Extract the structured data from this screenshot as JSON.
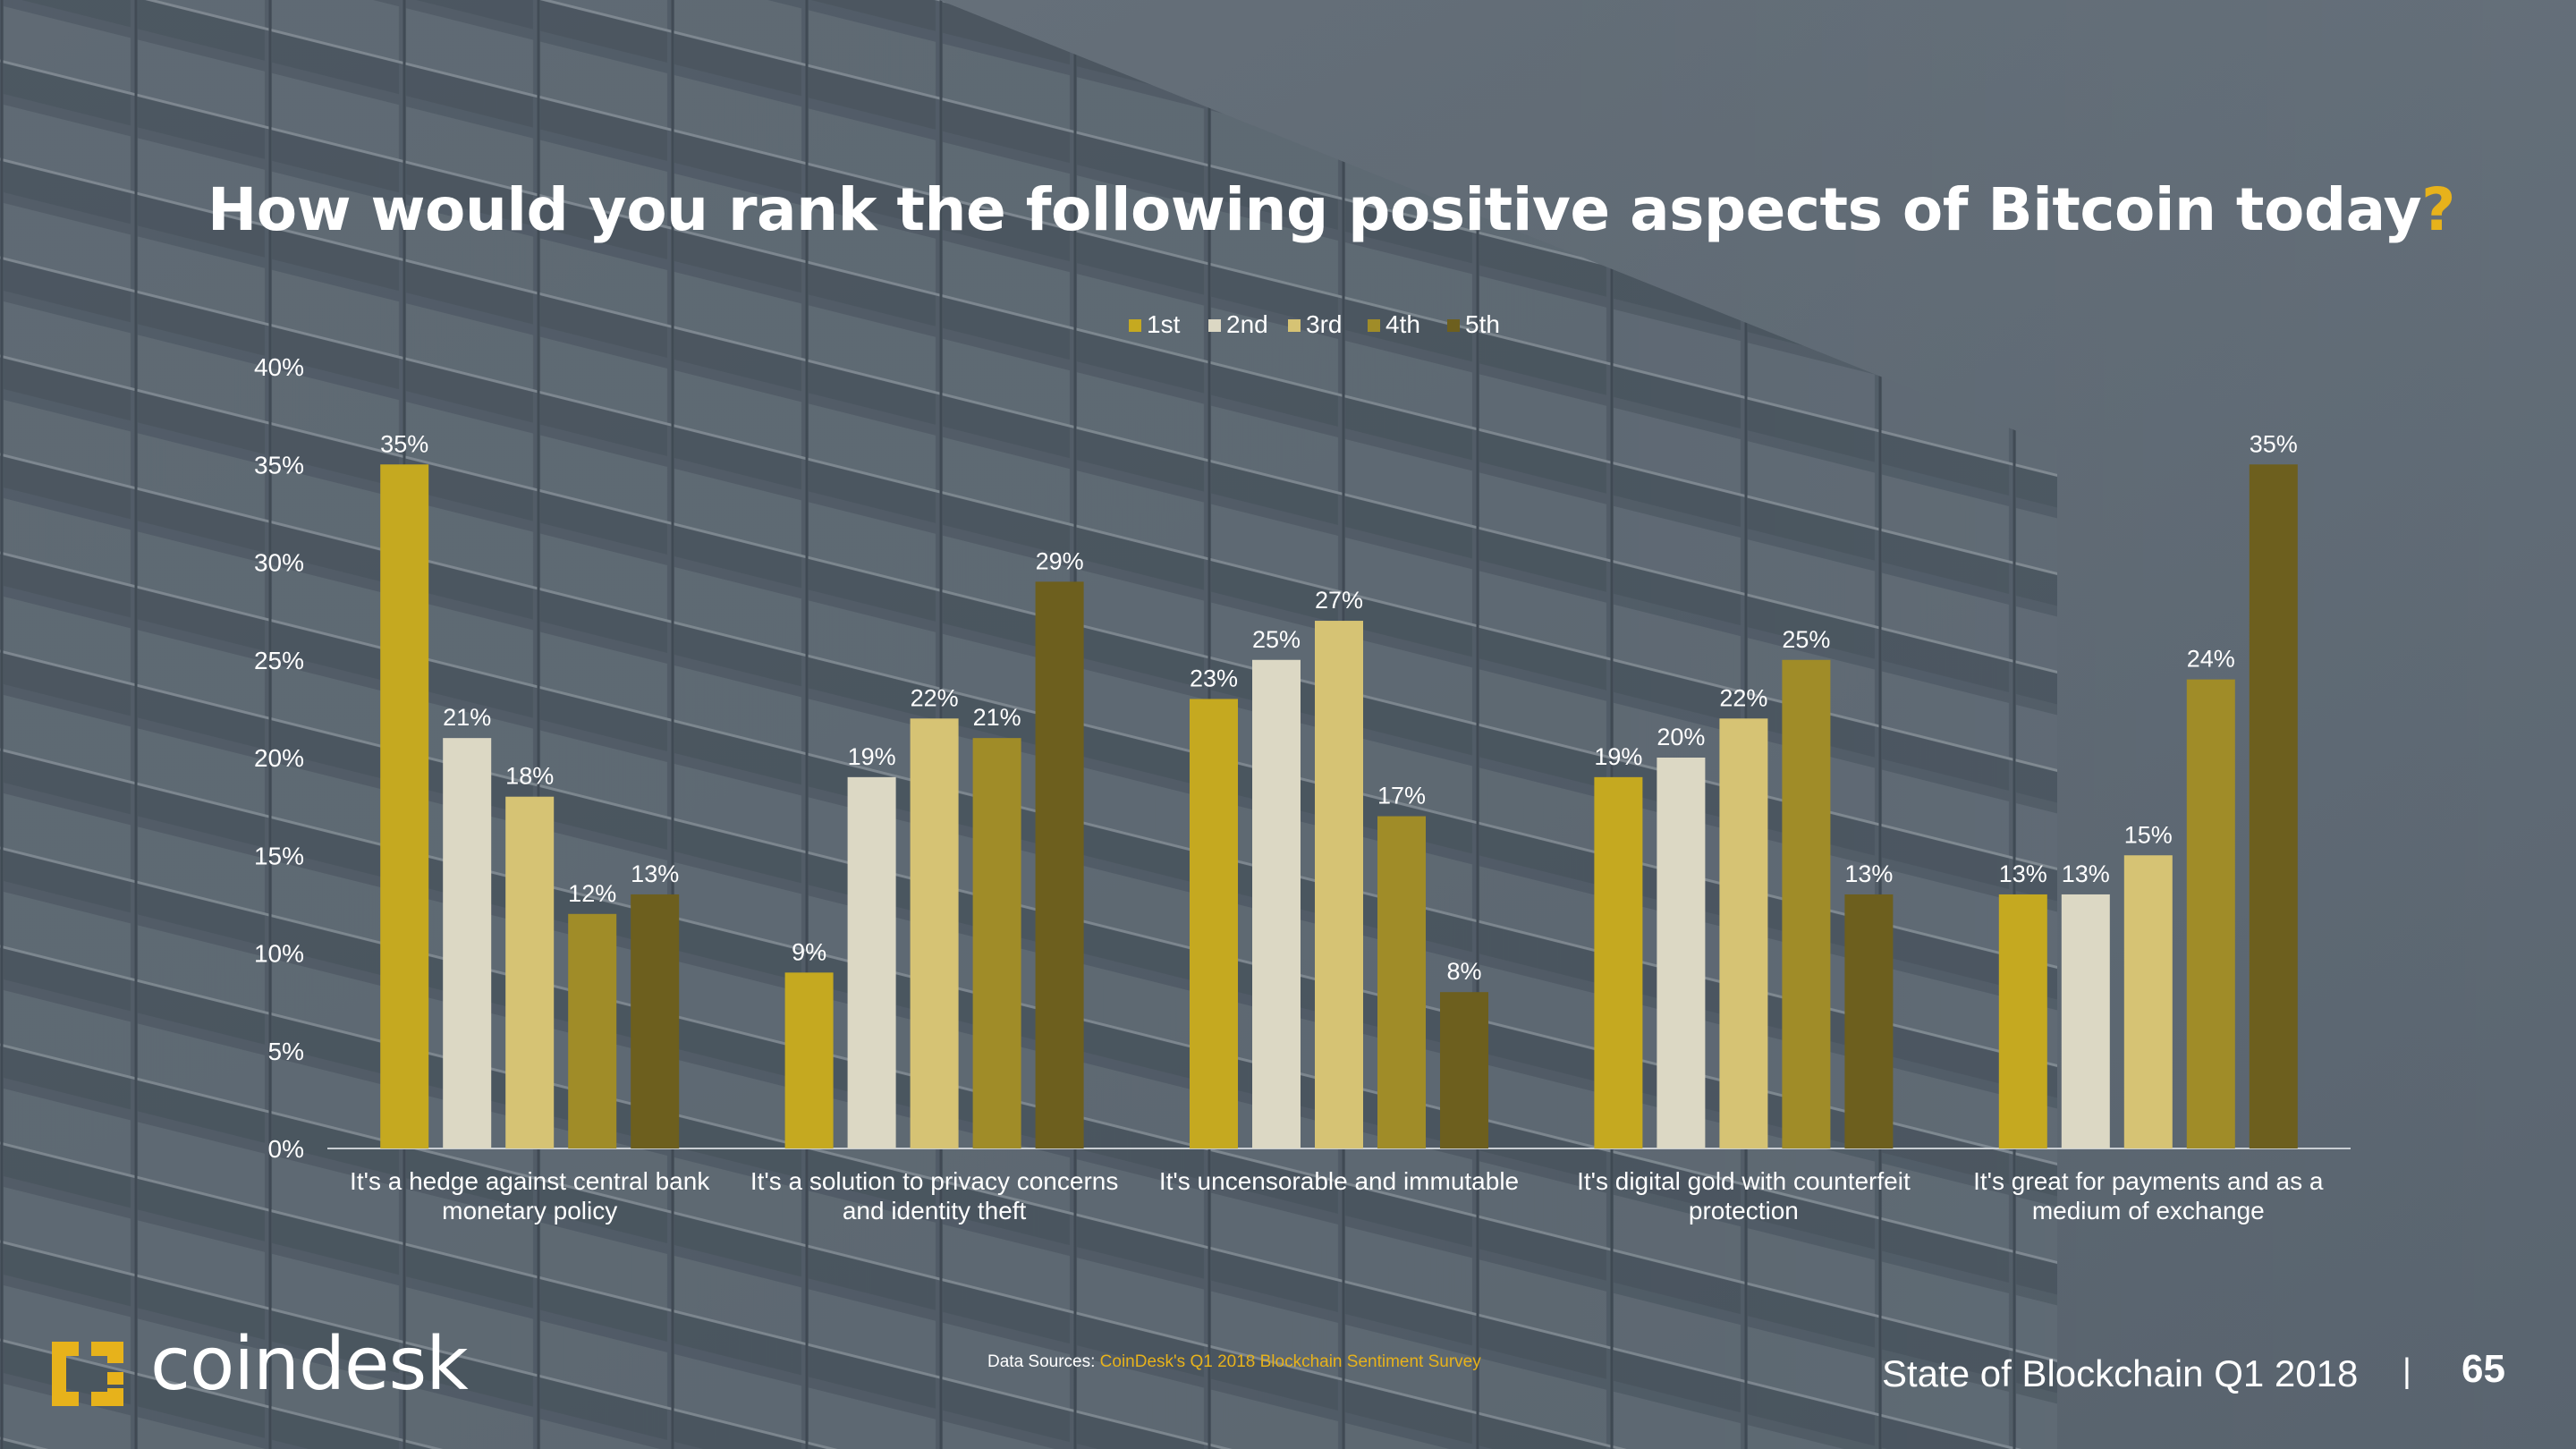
{
  "slide": {
    "title": "How would you rank the following positive aspects of Bitcoin today",
    "title_mark": "?",
    "brand": "coindesk",
    "sources_label": "Data Sources: ",
    "sources_text": "CoinDesk's Q1 2018 Blockchain Sentiment Survey",
    "report": "State of Blockchain Q1 2018",
    "separator": "|",
    "page_number": "65",
    "accent_color": "#e7b21b"
  },
  "chart_data": {
    "type": "bar",
    "title": "How would you rank the following positive aspects of Bitcoin today?",
    "categories": [
      [
        "It's a hedge against central bank",
        "monetary policy"
      ],
      [
        "It's a solution to privacy concerns",
        "and identity theft"
      ],
      [
        "It's uncensorable and immutable"
      ],
      [
        "It's digital gold with counterfeit",
        "protection"
      ],
      [
        "It's great for payments and as a",
        "medium of exchange"
      ]
    ],
    "series": [
      {
        "name": "1st",
        "color": "#c5a920",
        "values": [
          35,
          9,
          23,
          19,
          13
        ]
      },
      {
        "name": "2nd",
        "color": "#dcd8c4",
        "values": [
          21,
          19,
          25,
          20,
          13
        ]
      },
      {
        "name": "3rd",
        "color": "#d6c374",
        "values": [
          18,
          22,
          27,
          22,
          15
        ]
      },
      {
        "name": "4th",
        "color": "#a08c28",
        "values": [
          12,
          21,
          17,
          25,
          24
        ]
      },
      {
        "name": "5th",
        "color": "#6d5f1e",
        "values": [
          13,
          29,
          8,
          13,
          35
        ]
      }
    ],
    "y_ticks": [
      "0%",
      "5%",
      "10%",
      "15%",
      "20%",
      "25%",
      "30%",
      "35%",
      "40%"
    ],
    "ylim": [
      0,
      40
    ],
    "value_suffix": "%",
    "legend_position": "top-center",
    "grid": false
  }
}
